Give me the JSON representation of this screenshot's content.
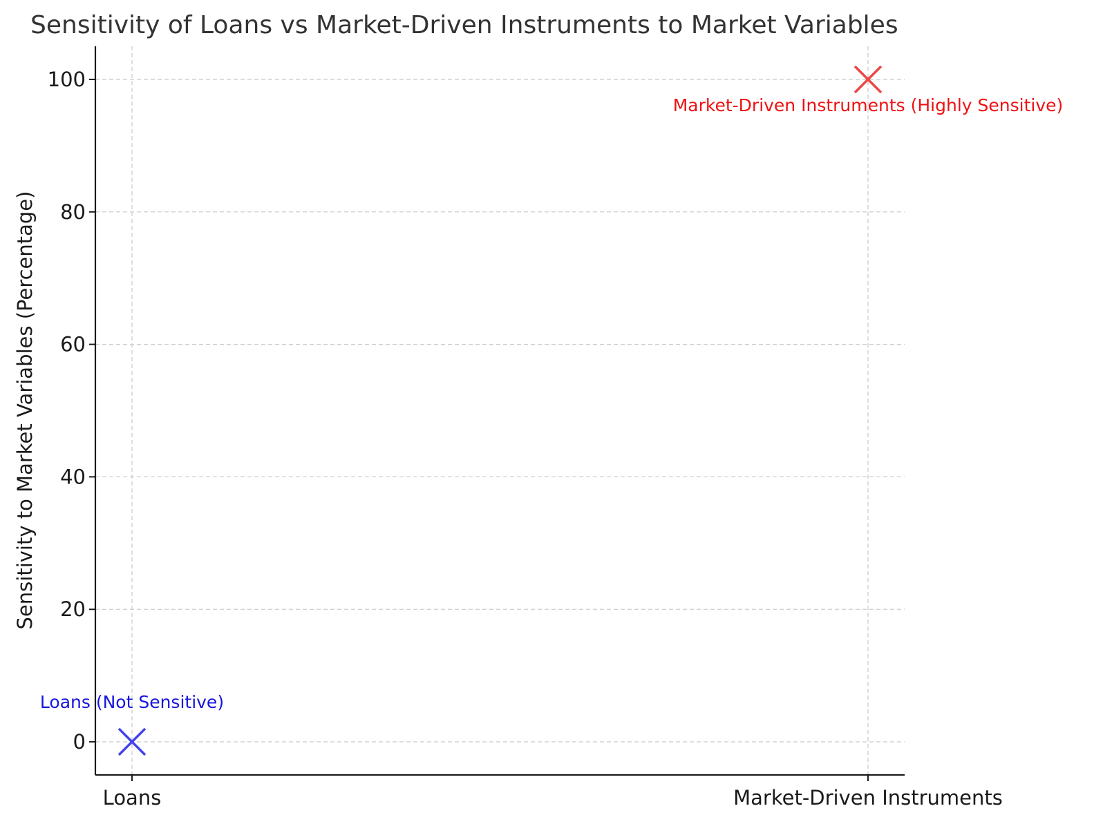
{
  "chart_data": {
    "type": "scatter",
    "title": "Sensitivity of Loans vs Market-Driven Instruments to Market Variables",
    "xlabel": "",
    "ylabel": "Sensitivity to Market Variables (Percentage)",
    "categories": [
      "Loans",
      "Market-Driven Instruments"
    ],
    "ylim": [
      -5,
      105
    ],
    "yticks": [
      0,
      20,
      40,
      60,
      80,
      100
    ],
    "grid": true,
    "marker": "x",
    "points": [
      {
        "category": "Loans",
        "y": 0,
        "color": "#4444ee",
        "annotation": "Loans (Not Sensitive)",
        "annotation_color": "#1515dd"
      },
      {
        "category": "Market-Driven Instruments",
        "y": 100,
        "color": "#ee4444",
        "annotation": "Market-Driven Instruments (Highly Sensitive)",
        "annotation_color": "#ee1111"
      }
    ]
  }
}
